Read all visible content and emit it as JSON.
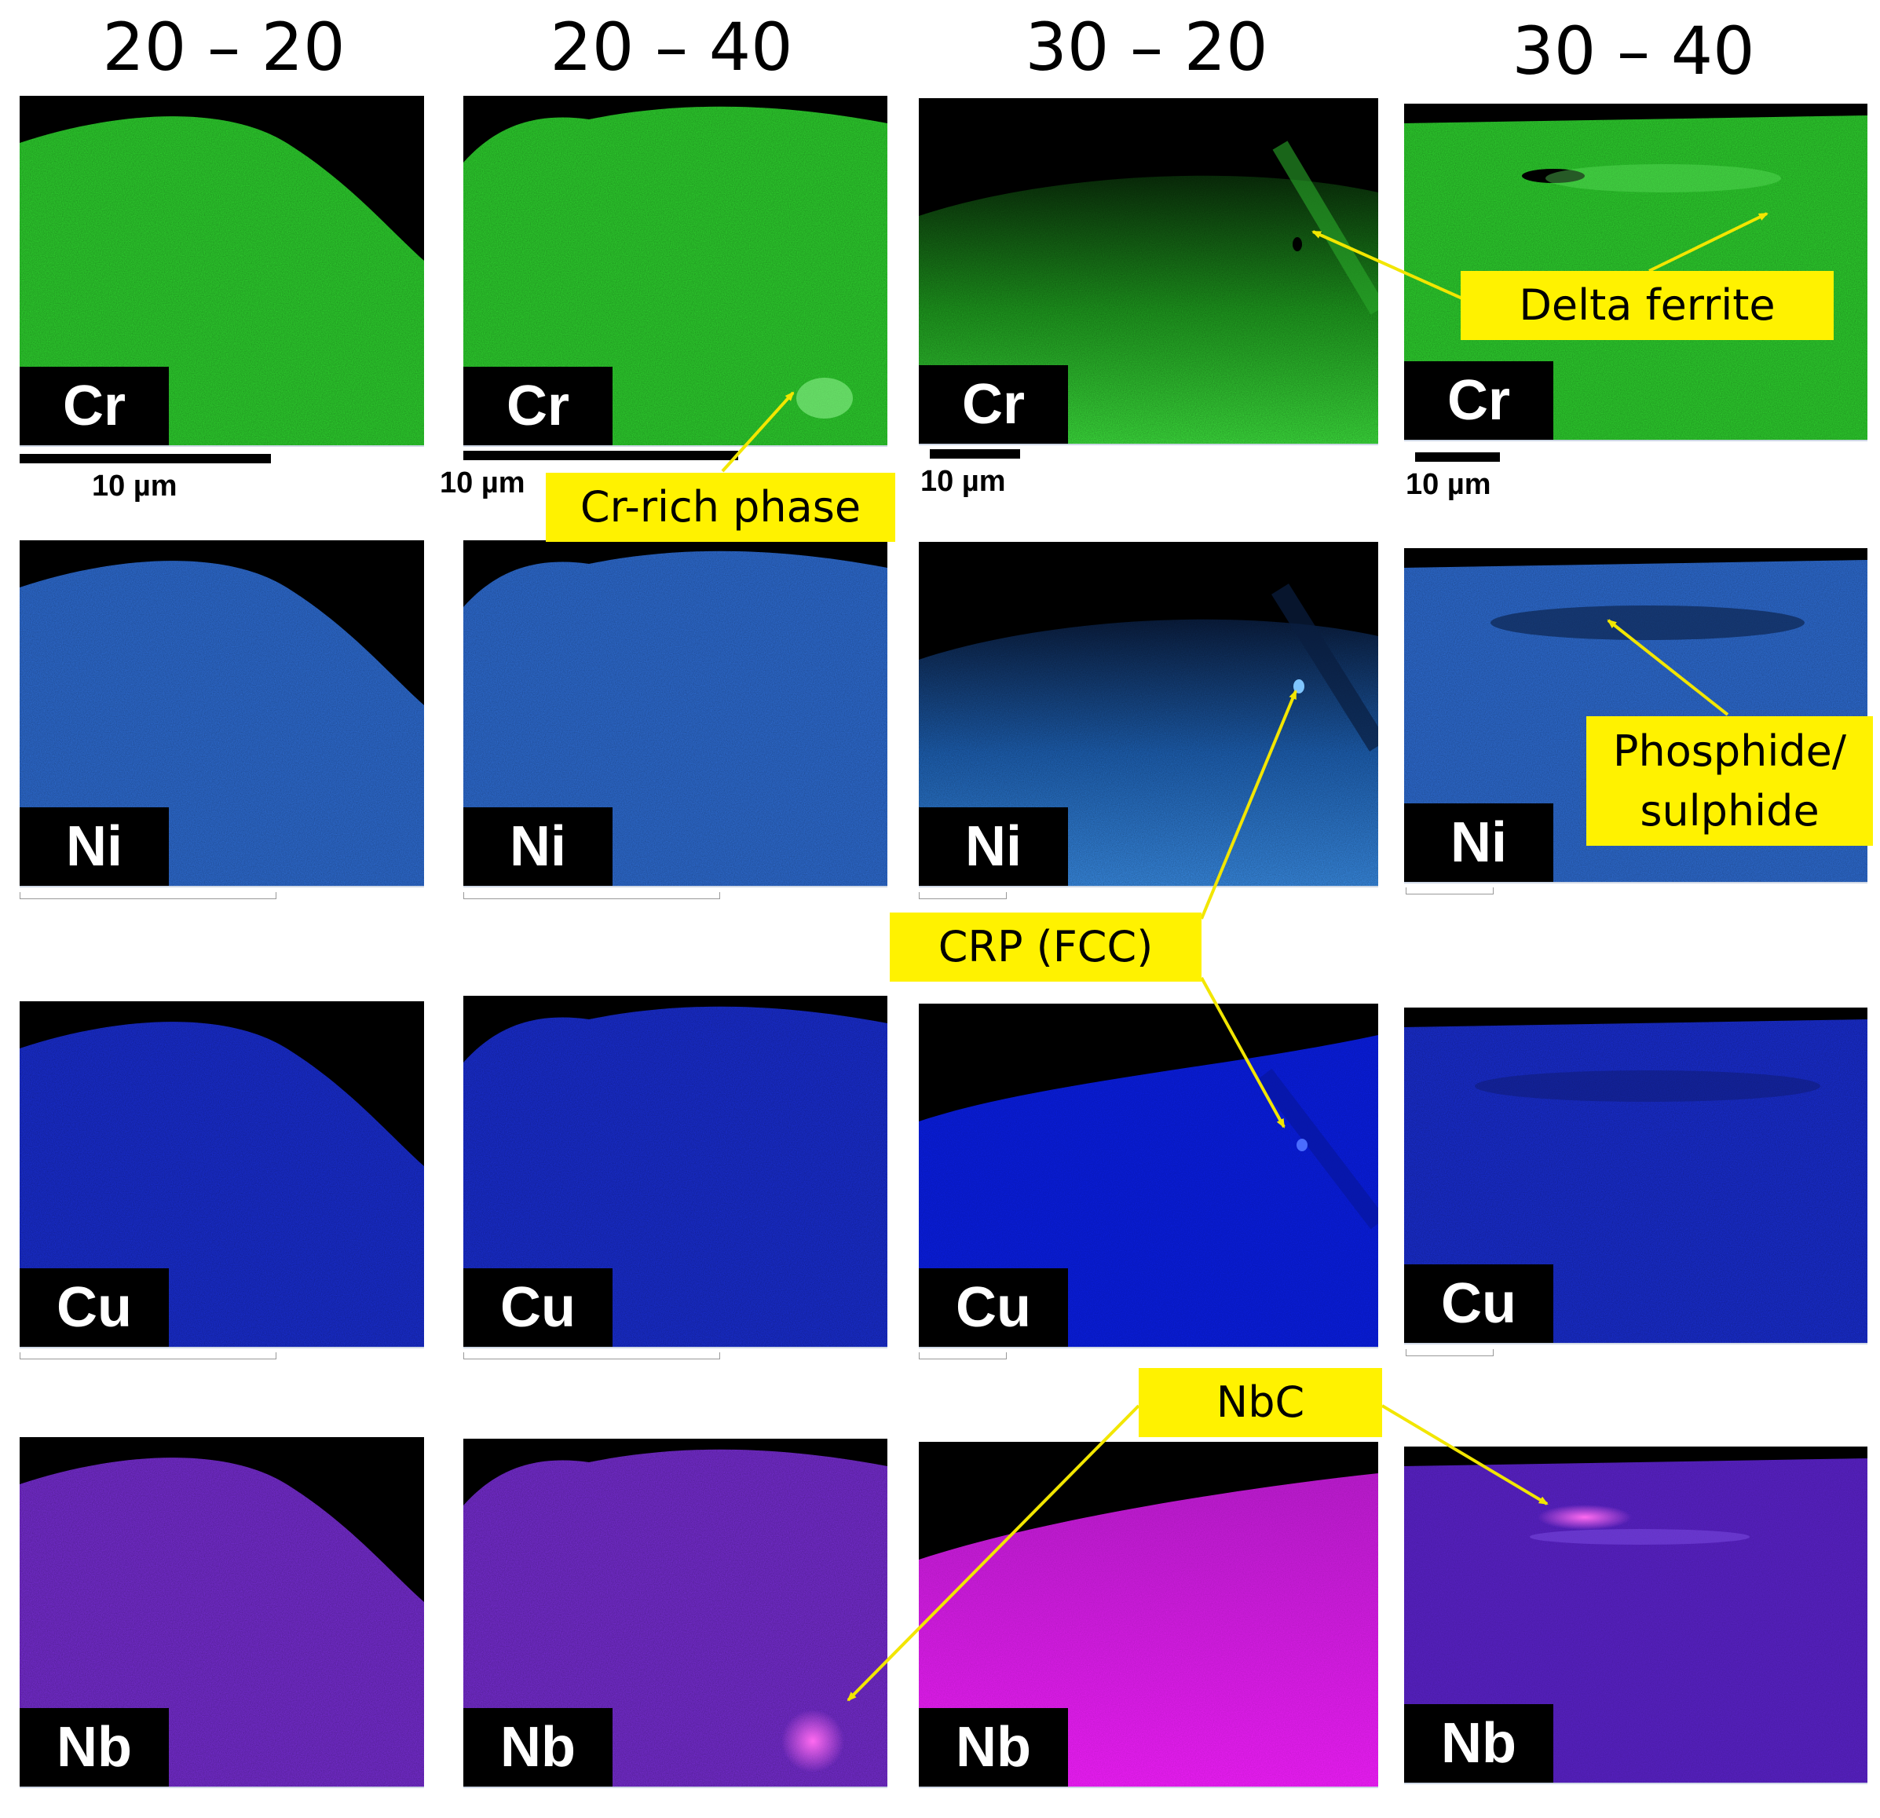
{
  "columns": [
    {
      "title": "20 – 20"
    },
    {
      "title": "20 – 40"
    },
    {
      "title": "30 – 20"
    },
    {
      "title": "30 – 40"
    }
  ],
  "elements": [
    "Cr",
    "Ni",
    "Cu",
    "Nb"
  ],
  "scale_label": "10 µm",
  "callouts": {
    "cr_rich": "Cr-rich phase",
    "delta_ferrite": "Delta ferrite",
    "phosphide_line1": "Phosphide/",
    "phosphide_line2": "sulphide",
    "crp_fcc": "CRP (FCC)",
    "nbc": "NbC"
  },
  "colors": {
    "cr": "#2fd62f",
    "ni": "#2f6fd8",
    "cu": "#1a2fd8",
    "nb": "#7a2ed8",
    "nb_bright": "#e21ef0",
    "callout_bg": "#fff200",
    "arrow": "#f2e600"
  }
}
